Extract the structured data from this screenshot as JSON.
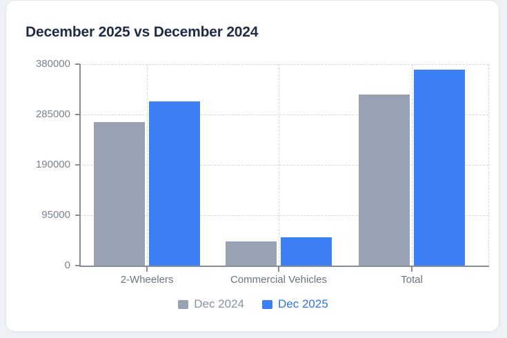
{
  "card": {
    "title": "December 2025 vs December 2024"
  },
  "chart_data": {
    "type": "bar",
    "title": "December 2025 vs December 2024",
    "categories": [
      "2-Wheelers",
      "Commercial Vehicles",
      "Total"
    ],
    "series": [
      {
        "name": "Dec 2024",
        "color": "#98a2b3",
        "label_color": "#8a93a3",
        "values": [
          271000,
          45000,
          323000
        ]
      },
      {
        "name": "Dec 2025",
        "color": "#3d7ff4",
        "label_color": "#3273e8",
        "values": [
          310000,
          54000,
          370000
        ]
      }
    ],
    "xlabel": "",
    "ylabel": "",
    "ylim": [
      0,
      380000
    ],
    "yticks": [
      0,
      95000,
      190000,
      285000,
      380000
    ],
    "ytick_labels": [
      "0",
      "95000",
      "190000",
      "285000",
      "380000"
    ],
    "grid": "dashed horizontal at yticks, dashed vertical at category centers and right edge",
    "legend_position": "bottom-center",
    "colors": {
      "title_text": "#1f2b47",
      "axis_line": "#878c96",
      "axis_text": "#7a8290",
      "gridline": "#d3d7de",
      "card_background": "#ffffff",
      "page_background": "#eef1f6"
    }
  }
}
